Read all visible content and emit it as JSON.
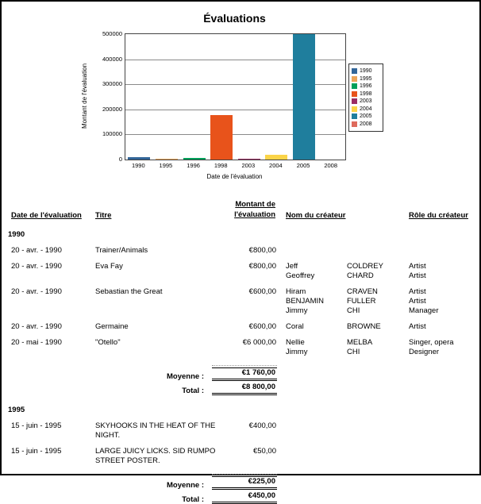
{
  "chart": {
    "title": "Évaluations",
    "xlabel": "Date de l'évaluation",
    "ylabel": "Montant de l'évaluation",
    "y_ticks": [
      "500000",
      "400000",
      "300000",
      "200000",
      "100000",
      "0"
    ]
  },
  "chart_data": {
    "type": "bar",
    "title": "Évaluations",
    "xlabel": "Date de l'évaluation",
    "ylabel": "Montant de l'évaluation",
    "categories": [
      "1990",
      "1995",
      "1996",
      "1998",
      "2003",
      "2004",
      "2005",
      "2008"
    ],
    "values": [
      8800,
      450,
      5000,
      178000,
      3000,
      19000,
      500000,
      0
    ],
    "colors": [
      "#336699",
      "#EDA559",
      "#00A05A",
      "#E8531B",
      "#9B2D64",
      "#FBD448",
      "#1F7E9D",
      "#DE6A5C"
    ],
    "ylim": [
      0,
      500000
    ],
    "grid": true,
    "legend_position": "right",
    "legend_entries": [
      "1990",
      "1995",
      "1996",
      "1998",
      "2003",
      "2004",
      "2005",
      "2008"
    ]
  },
  "table": {
    "headers": {
      "date": "Date de l'évaluation",
      "title": "Titre",
      "montant_line1": "Montant de",
      "montant_line2": "l'évaluation",
      "creator_name": "Nom du créateur",
      "creator_role": "Rôle du créateur"
    },
    "summary_labels": {
      "moyenne": "Moyenne :",
      "total": "Total :"
    },
    "groups": [
      {
        "year": "1990",
        "rows": [
          {
            "date": "20 - avr. - 1990",
            "title": "Trainer/Animals",
            "amount": "€800,00",
            "creators": []
          },
          {
            "date": "20 - avr. - 1990",
            "title": "Eva Fay",
            "amount": "€800,00",
            "creators": [
              {
                "first": "Jeff",
                "last": "COLDREY",
                "role": "Artist"
              },
              {
                "first": "Geoffrey",
                "last": "CHARD",
                "role": "Artist"
              }
            ]
          },
          {
            "date": "20 - avr. - 1990",
            "title": "Sebastian the Great",
            "amount": "€600,00",
            "creators": [
              {
                "first": "Hiram",
                "last": "CRAVEN",
                "role": "Artist"
              },
              {
                "first": "BENJAMIN",
                "last": "FULLER",
                "role": "Artist"
              },
              {
                "first": "Jimmy",
                "last": "CHI",
                "role": "Manager"
              }
            ]
          },
          {
            "date": "20 - avr. - 1990",
            "title": "Germaine",
            "amount": "€600,00",
            "creators": [
              {
                "first": "Coral",
                "last": "BROWNE",
                "role": "Artist"
              }
            ]
          },
          {
            "date": "20 - mai - 1990",
            "title": "\"Otello\"",
            "amount": "€6 000,00",
            "creators": [
              {
                "first": "Nellie",
                "last": "MELBA",
                "role": "Singer, opera"
              },
              {
                "first": "Jimmy",
                "last": "CHI",
                "role": "Designer"
              }
            ]
          }
        ],
        "moyenne": "€1 760,00",
        "total": "€8 800,00"
      },
      {
        "year": "1995",
        "rows": [
          {
            "date": "15 - juin - 1995",
            "title": "SKYHOOKS IN THE HEAT OF THE NIGHT.",
            "amount": "€400,00",
            "creators": []
          },
          {
            "date": "15 - juin - 1995",
            "title": "LARGE JUICY LICKS. SID RUMPO STREET POSTER.",
            "amount": "€50,00",
            "creators": []
          }
        ],
        "moyenne": "€225,00",
        "total": "€450,00"
      }
    ]
  }
}
